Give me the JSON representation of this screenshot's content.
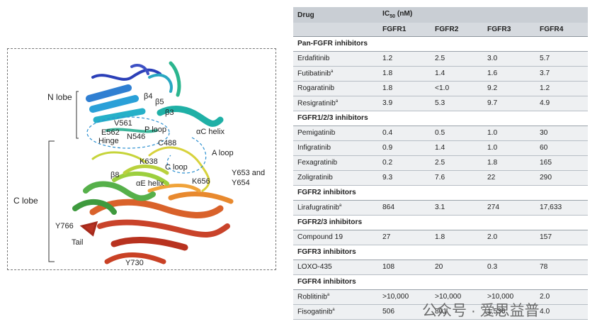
{
  "figure": {
    "labels": {
      "n_lobe": "N lobe",
      "c_lobe": "C lobe",
      "beta4": "β4",
      "beta5": "β5",
      "beta3": "β3",
      "v561": "V561",
      "p_loop": "P loop",
      "ac_helix": "αC helix",
      "e562": "E562",
      "n546": "N546",
      "c488": "C488",
      "hinge": "Hinge",
      "a_loop": "A loop",
      "k638": "K638",
      "c_loop": "C loop",
      "y653_line1": "Y653 and",
      "y653_line2": "Y654",
      "beta8": "β8",
      "ae_helix": "αE helix",
      "k656": "K656",
      "y766": "Y766",
      "tail": "Tail",
      "y730": "Y730"
    }
  },
  "table": {
    "header_drug": "Drug",
    "header_ic50": "IC",
    "header_ic50_sub": "50",
    "header_ic50_unit": " (nM)",
    "columns": [
      "FGFR1",
      "FGFR2",
      "FGFR3",
      "FGFR4"
    ],
    "groups": [
      {
        "name": "Pan-FGFR inhibitors",
        "rows": [
          {
            "drug": "Erdafitinib",
            "sup": "",
            "values": [
              "1.2",
              "2.5",
              "3.0",
              "5.7"
            ]
          },
          {
            "drug": "Futibatinib",
            "sup": "a",
            "values": [
              "1.8",
              "1.4",
              "1.6",
              "3.7"
            ]
          },
          {
            "drug": "Rogaratinib",
            "sup": "",
            "values": [
              "1.8",
              "<1.0",
              "9.2",
              "1.2"
            ]
          },
          {
            "drug": "Resigratinib",
            "sup": "a",
            "values": [
              "3.9",
              "5.3",
              "9.7",
              "4.9"
            ]
          }
        ]
      },
      {
        "name": "FGFR1/2/3 inhibitors",
        "rows": [
          {
            "drug": "Pemigatinib",
            "sup": "",
            "values": [
              "0.4",
              "0.5",
              "1.0",
              "30"
            ]
          },
          {
            "drug": "Infigratinib",
            "sup": "",
            "values": [
              "0.9",
              "1.4",
              "1.0",
              "60"
            ]
          },
          {
            "drug": "Fexagratinib",
            "sup": "",
            "values": [
              "0.2",
              "2.5",
              "1.8",
              "165"
            ]
          },
          {
            "drug": "Zoligratinib",
            "sup": "",
            "values": [
              "9.3",
              "7.6",
              "22",
              "290"
            ]
          }
        ]
      },
      {
        "name": "FGFR2 inhibitors",
        "rows": [
          {
            "drug": "Lirafugratinib",
            "sup": "a",
            "values": [
              "864",
              "3.1",
              "274",
              "17,633"
            ]
          }
        ]
      },
      {
        "name": "FGFR2/3 inhibitors",
        "rows": [
          {
            "drug": "Compound 19",
            "sup": "",
            "values": [
              "27",
              "1.8",
              "2.0",
              "157"
            ]
          }
        ]
      },
      {
        "name": "FGFR3 inhibitors",
        "rows": [
          {
            "drug": "LOXO-435",
            "sup": "",
            "values": [
              "108",
              "20",
              "0.3",
              "78"
            ]
          }
        ]
      },
      {
        "name": "FGFR4 inhibitors",
        "rows": [
          {
            "drug": "Roblitinib",
            "sup": "a",
            "values": [
              ">10,000",
              ">10,000",
              ">10,000",
              "2.0"
            ]
          },
          {
            "drug": "Fisogatinib",
            "sup": "a",
            "values": [
              "506",
              "801",
              "1,536",
              "4.0"
            ]
          }
        ]
      }
    ]
  },
  "watermark": {
    "text": "公众号 · 爱思益普"
  }
}
